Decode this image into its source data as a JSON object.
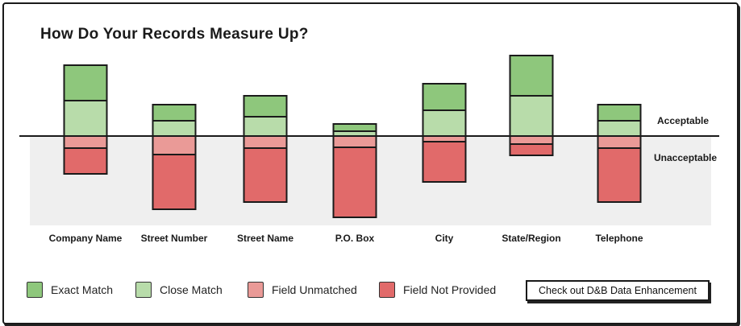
{
  "title": "How Do Your Records Measure Up?",
  "zones": {
    "acceptable": "Acceptable",
    "unacceptable": "Unacceptable"
  },
  "legend": [
    {
      "label": "Exact Match",
      "color": "#8ec77c"
    },
    {
      "label": "Close Match",
      "color": "#b8dcaa"
    },
    {
      "label": "Field Unmatched",
      "color": "#ea9a97"
    },
    {
      "label": "Field Not Provided",
      "color": "#e16a6a"
    }
  ],
  "cta_label": "Check out D&B Data Enhancement",
  "colors": {
    "exact": "#8ec77c",
    "close": "#b8dcaa",
    "unmatched": "#ea9a97",
    "not_provided": "#e16a6a",
    "unacceptable_zone": "#efefef",
    "outline": "#1a1a1a"
  },
  "chart_data": {
    "type": "bar",
    "stacked": true,
    "diverging": true,
    "categories": [
      "Company Name",
      "Street Number",
      "Street Name",
      "P.O. Box",
      "City",
      "State/Region",
      "Telephone"
    ],
    "series": [
      {
        "name": "Exact Match",
        "side": "above",
        "values": [
          44,
          20,
          26,
          9,
          33,
          50,
          20
        ]
      },
      {
        "name": "Close Match",
        "side": "above",
        "values": [
          44,
          19,
          24,
          6,
          32,
          50,
          19
        ]
      },
      {
        "name": "Field Unmatched",
        "side": "below",
        "values": [
          15,
          23,
          15,
          14,
          7,
          10,
          15
        ]
      },
      {
        "name": "Field Not Provided",
        "side": "below",
        "values": [
          32,
          68,
          67,
          87,
          50,
          14,
          67
        ]
      }
    ]
  }
}
